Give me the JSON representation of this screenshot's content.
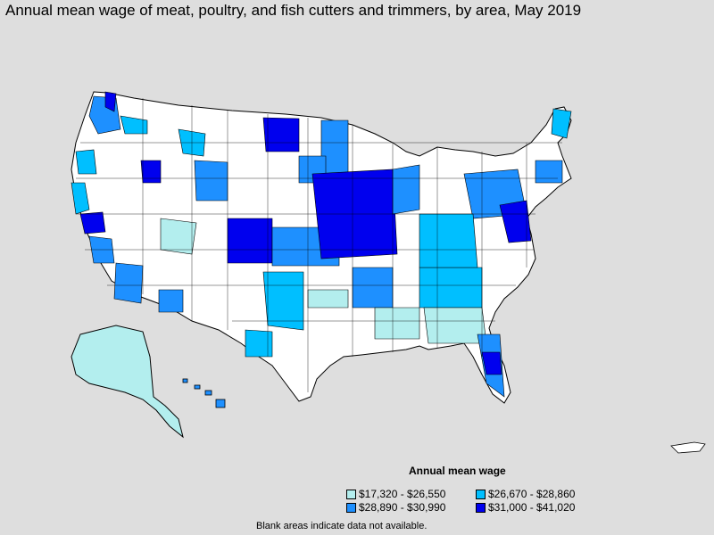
{
  "title": "Annual mean wage of meat, poultry, and fish cutters and trimmers, by area, May 2019",
  "legend": {
    "title": "Annual mean wage",
    "items": [
      {
        "label": "$17,320 - $26,550",
        "color": "#b3eeee"
      },
      {
        "label": "$26,670 - $28,860",
        "color": "#00bfff"
      },
      {
        "label": "$28,890 - $30,990",
        "color": "#1e90ff"
      },
      {
        "label": "$31,000 - $41,020",
        "color": "#0000ee"
      }
    ]
  },
  "footnote": "Blank areas indicate data not available.",
  "colors": {
    "background": "#dedede",
    "land": "#ffffff",
    "border": "#000000"
  }
}
